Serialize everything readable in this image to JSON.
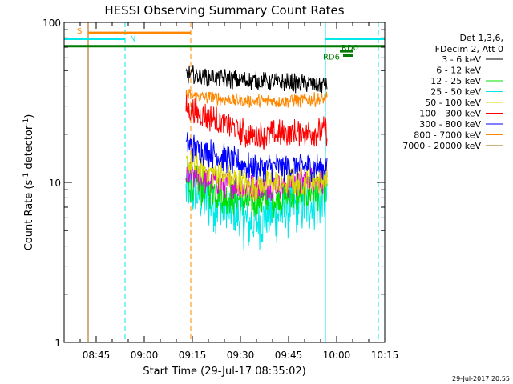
{
  "chart_data": {
    "type": "line",
    "title": "HESSI Observing Summary Count Rates",
    "xlabel": "Start Time (29-Jul-17 08:35:02)",
    "ylabel_main": "Count Rate (s",
    "ylabel_sup1": "-1",
    "ylabel_mid": " detector",
    "ylabel_sup2": "-1",
    "ylabel_end": ")",
    "yscale": "log",
    "ylim": [
      1,
      100
    ],
    "xlim_minutes": [
      0,
      100
    ],
    "x_tick_labels": [
      "08:45",
      "09:00",
      "09:15",
      "09:30",
      "09:45",
      "10:00",
      "10:15"
    ],
    "x_tick_minutes": [
      10,
      25,
      40,
      55,
      70,
      85,
      100
    ],
    "y_tick_labels": [
      "1",
      "10",
      "100"
    ],
    "y_tick_values": [
      1,
      10,
      100
    ],
    "legend_header": [
      "Det 1,3,6,",
      "FDecim 2, Att 0"
    ],
    "legend_position": "right",
    "series": [
      {
        "name": "3 - 6 keV",
        "color": "#000000",
        "start": 47.5,
        "mid": 43,
        "end": 41,
        "noise": 0.04
      },
      {
        "name": "6 - 12 keV",
        "color": "#e000e0",
        "start": 11,
        "mid": 9.2,
        "end": 10.5,
        "noise": 0.06
      },
      {
        "name": "12 - 25 keV",
        "color": "#00e000",
        "start": 10,
        "mid": 7.5,
        "end": 9,
        "noise": 0.08
      },
      {
        "name": "25 - 50 keV",
        "color": "#00e8e8",
        "start": 9,
        "mid": 5.5,
        "end": 8,
        "noise": 0.12
      },
      {
        "name": "50 - 100 keV",
        "color": "#d8d800",
        "start": 13,
        "mid": 9.5,
        "end": 10.5,
        "noise": 0.06
      },
      {
        "name": "100 - 300 keV",
        "color": "#ff0000",
        "start": 29,
        "mid": 19.5,
        "end": 21,
        "noise": 0.06
      },
      {
        "name": "300 - 800 keV",
        "color": "#0000ff",
        "start": 17,
        "mid": 12.5,
        "end": 12.5,
        "noise": 0.06
      },
      {
        "name": "800 - 7000 keV",
        "color": "#ff8800",
        "start": 35,
        "mid": 32,
        "end": 33,
        "noise": 0.03
      },
      {
        "name": "7000 - 20000 keV",
        "color": "#a06000",
        "start": null,
        "mid": null,
        "end": null,
        "noise": 0
      }
    ],
    "data_x_minutes": [
      38,
      82
    ],
    "flag_bars": [
      {
        "label": "S",
        "color": "#ff8800",
        "x0": 7.5,
        "x1": 39.5,
        "y": 86
      },
      {
        "label": "N",
        "color": "#00e8e8",
        "x0": 0,
        "x1": 19,
        "y": 79
      },
      {
        "label": "",
        "color": "#00e8e8",
        "x0": 81.5,
        "x1": 100,
        "y": 79
      },
      {
        "label": "",
        "color": "#007a00",
        "x0": 0,
        "x1": 100,
        "y": 71
      },
      {
        "label": "RD6",
        "color": "#007a00",
        "x0": 87,
        "x1": 90,
        "y": 62
      },
      {
        "label": "RD0",
        "color": "#007a00",
        "x0": 86,
        "x1": 90,
        "y": 66
      }
    ],
    "vertical_lines": [
      {
        "x": 7.5,
        "color": "#a06000",
        "style": "solid"
      },
      {
        "x": 19,
        "color": "#00e8e8",
        "style": "dashed"
      },
      {
        "x": 39.5,
        "color": "#ff8800",
        "style": "dashed"
      },
      {
        "x": 81.5,
        "color": "#00e8e8",
        "style": "solid"
      },
      {
        "x": 98,
        "color": "#00e8e8",
        "style": "dashed"
      }
    ]
  },
  "timestamp": "29-Jul-2017 20:55"
}
